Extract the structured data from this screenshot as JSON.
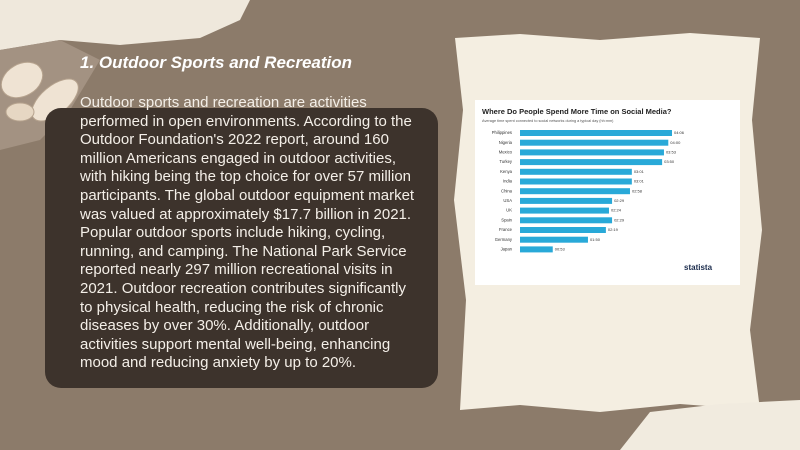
{
  "heading": "1. Outdoor Sports and Recreation",
  "paragraph": "Outdoor sports and recreation are activities performed in open environments. According to the Outdoor Foundation's 2022 report, around 160 million Americans engaged in outdoor activities, with hiking being the top choice for over 57 million participants. The global outdoor equipment market was valued at approximately $17.7 billion in 2021. Popular outdoor sports include hiking, cycling, running, and camping. The National Park Service reported nearly 297 million recreational visits in 2021. Outdoor recreation contributes significantly to physical health, reducing the risk of chronic diseases by over 30%. Additionally, outdoor activities support mental well-being, enhancing mood and reducing anxiety by up to 20%.",
  "chart_data": {
    "type": "bar",
    "orientation": "horizontal",
    "title": "Where Do People Spend More Time on Social Media?",
    "subtitle": "Average time spent connected to social networks during a typical day (hh:mm)",
    "categories": [
      "Philippines",
      "Nigeria",
      "Mexico",
      "Turkey",
      "Kenya",
      "India",
      "China",
      "USA",
      "UK",
      "Spain",
      "France",
      "Germany",
      "Japan"
    ],
    "values": [
      246,
      240,
      233,
      230,
      181,
      181,
      178,
      149,
      144,
      149,
      139,
      110,
      53
    ],
    "value_labels": [
      "04:06",
      "04:00",
      "03:53",
      "03:50",
      "03:01",
      "03:01",
      "02:58",
      "02:29",
      "02:24",
      "02:29",
      "02:19",
      "01:50",
      "00:53"
    ],
    "color": "#29a9d8",
    "source": "statista"
  }
}
